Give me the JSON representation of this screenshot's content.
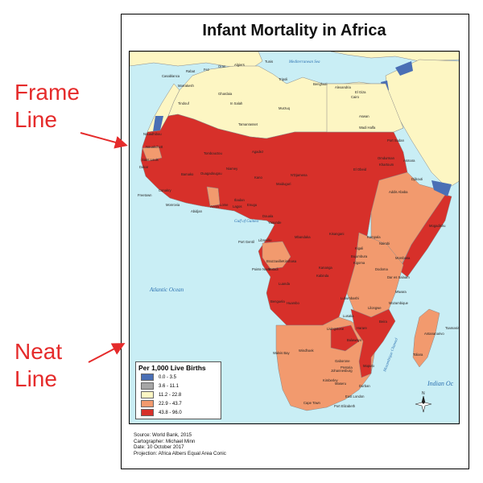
{
  "title": "Infant Mortality in Africa",
  "annotations": {
    "frame_line": "Frame\nLine",
    "neat_line": "Neat\nLine",
    "color": "#e52b2b"
  },
  "legend": {
    "title": "Per 1,000 Live Births",
    "classes": [
      {
        "label": "0.0 - 3.5",
        "color": "#4a6fb5"
      },
      {
        "label": "3.6 - 11.1",
        "color": "#a6a6a6"
      },
      {
        "label": "11.2 - 22.8",
        "color": "#fdf6c3"
      },
      {
        "label": "22.9 - 43.7",
        "color": "#f29a6e"
      },
      {
        "label": "43.8 - 96.0",
        "color": "#d7302a"
      }
    ]
  },
  "metadata": [
    "Source: World Bank, 2015",
    "Cartographer: Michael Minn",
    "Date: 10 October 2017",
    "Projection: Africa Albers Equal Area Conic"
  ],
  "water_labels": {
    "atlantic": "Atlantic Ocean",
    "indian": "Indian Oc",
    "gulf_guinea": "Gulf of Guinea",
    "mediterranean": "Mediterranean Sea",
    "mozambique": "Mozambique Channel"
  },
  "compass": "N",
  "cities": [
    "Casablanca",
    "Rabat",
    "Fez",
    "Oran",
    "Algiers",
    "Tunis",
    "Tripoli",
    "Benghazi",
    "Alexandria",
    "El Giza",
    "Cairo",
    "Marrakesh",
    "Tindouf",
    "In Salah",
    "Ghardaia",
    "Murzuq",
    "Aswan",
    "Tamanrasset",
    "Wadi Halfa",
    "Port Sudan",
    "Nouadhibou",
    "Nouakchott",
    "Saint Louis",
    "Dakar",
    "Tombouctou",
    "Agadez",
    "Omdurman",
    "Khartoum",
    "Asmara",
    "Bamako",
    "Ouagadougou",
    "Niamey",
    "Kano",
    "N'Djamena",
    "Maiduguri",
    "El Obeid",
    "Djibouti",
    "Conakry",
    "Freetown",
    "Monrovia",
    "Abidjan",
    "Accra",
    "Lome",
    "Ibadan",
    "Lagos",
    "Enugu",
    "Douala",
    "Yaounde",
    "Addis Ababa",
    "Mogadishu",
    "Port Gentil",
    "Libreville",
    "Mbandaka",
    "Kisangani",
    "Kampala",
    "Nairobi",
    "Kigali",
    "Bujumbura",
    "Mombasa",
    "Brazzaville",
    "Kinshasa",
    "Matadi",
    "Pointe Noire",
    "Kananga",
    "Kigoma",
    "Dodoma",
    "Dar es Salaam",
    "Kabinda",
    "Luanda",
    "Mtwara",
    "Benguela",
    "Huambo",
    "Lubumbashi",
    "Lilongwe",
    "Beira",
    "Livingstone",
    "Harare",
    "Lusaka",
    "Bulawayo",
    "Windhoek",
    "Walvis Bay",
    "Gaborone",
    "Pretoria",
    "Johannesburg",
    "Kimberley",
    "Maseru",
    "Durban",
    "Maputo",
    "Mozambique",
    "Antananarivo",
    "Toamasina",
    "Toliara",
    "Cape Town",
    "East London",
    "Port Elizabeth"
  ]
}
